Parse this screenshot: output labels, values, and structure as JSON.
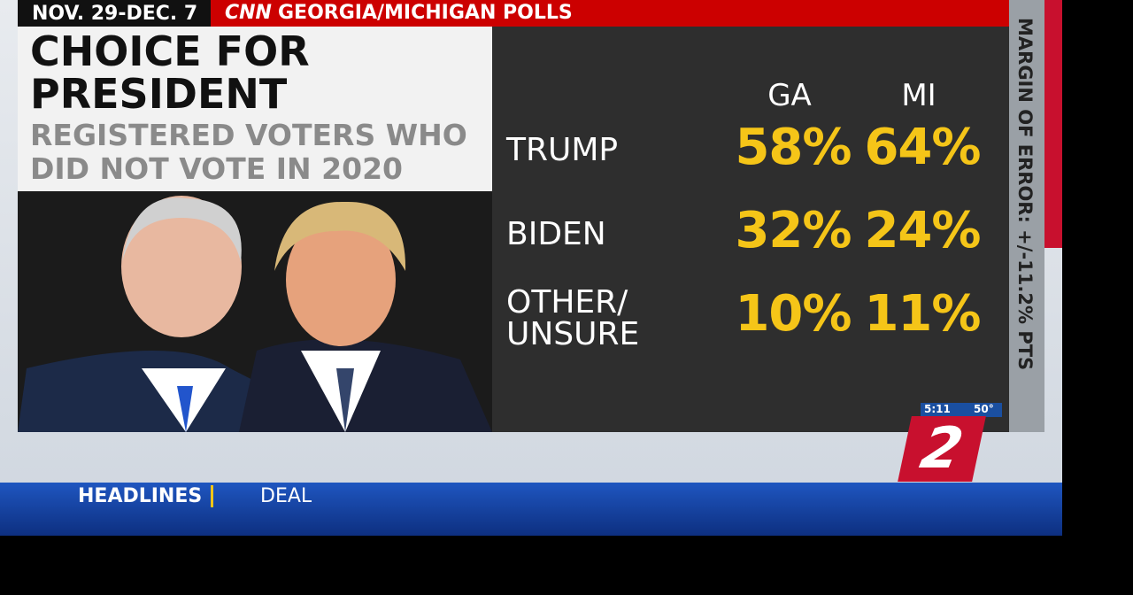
{
  "banner": {
    "dates": "NOV. 29-DEC. 7",
    "network": "CNN",
    "title": "GEORGIA/MICHIGAN POLLS"
  },
  "panel": {
    "title": "CHOICE FOR PRESIDENT",
    "subtitle": "REGISTERED VOTERS WHO DID NOT VOTE IN 2020"
  },
  "table": {
    "columns": [
      "GA",
      "MI"
    ],
    "rows": [
      [
        "TRUMP",
        "58%",
        "64%"
      ],
      [
        "BIDEN",
        "32%",
        "24%"
      ],
      [
        "OTHER/ UNSURE",
        "10%",
        "11%"
      ]
    ]
  },
  "margin_of_error": "MARGIN OF ERROR: +/-11.2% PTS",
  "station": {
    "time": "5:11",
    "temperature": "50°",
    "logo": "2"
  },
  "ticker": {
    "label": "HEADLINES",
    "text": "DEAL"
  }
}
